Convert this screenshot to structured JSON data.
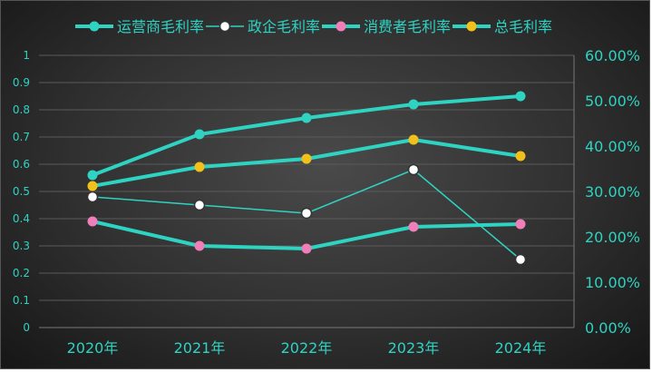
{
  "chart_data": {
    "type": "line",
    "categories": [
      "2020年",
      "2021年",
      "2022年",
      "2023年",
      "2024年"
    ],
    "series": [
      {
        "name": "运营商毛利率",
        "axis": "left",
        "values": [
          0.56,
          0.71,
          0.77,
          0.82,
          0.85
        ],
        "line_color": "#2ed3c2",
        "marker_color": "#2ed3c2",
        "line_style": "thick"
      },
      {
        "name": "政企毛利率",
        "axis": "left",
        "values": [
          0.48,
          0.45,
          0.42,
          0.58,
          0.25
        ],
        "line_color": "#2ed3c2",
        "marker_color": "#ffffff",
        "line_style": "thin"
      },
      {
        "name": "消费者毛利率",
        "axis": "left",
        "values": [
          0.39,
          0.3,
          0.29,
          0.37,
          0.38
        ],
        "line_color": "#2ed3c2",
        "marker_color": "#f07eb8",
        "line_style": "thick"
      },
      {
        "name": "总毛利率",
        "axis": "left",
        "values": [
          0.52,
          0.59,
          0.62,
          0.69,
          0.63
        ],
        "line_color": "#2ed3c2",
        "marker_color": "#f2c01a",
        "line_style": "thick"
      }
    ],
    "y_left": {
      "min": 0,
      "max": 1,
      "ticks": [
        "0",
        "0.1",
        "0.2",
        "0.3",
        "0.4",
        "0.5",
        "0.6",
        "0.7",
        "0.8",
        "0.9",
        "1"
      ]
    },
    "y_right": {
      "min": 0,
      "max": 0.6,
      "ticks": [
        "0.00%",
        "10.00%",
        "20.00%",
        "30.00%",
        "40.00%",
        "50.00%",
        "60.00%"
      ]
    },
    "grid": true,
    "legend_position": "top-center",
    "title": "",
    "xlabel": "",
    "ylabel": ""
  },
  "colors": {
    "accent": "#2ed3c2",
    "grid": "#5a5a5a",
    "label": "#2ed3c2"
  }
}
